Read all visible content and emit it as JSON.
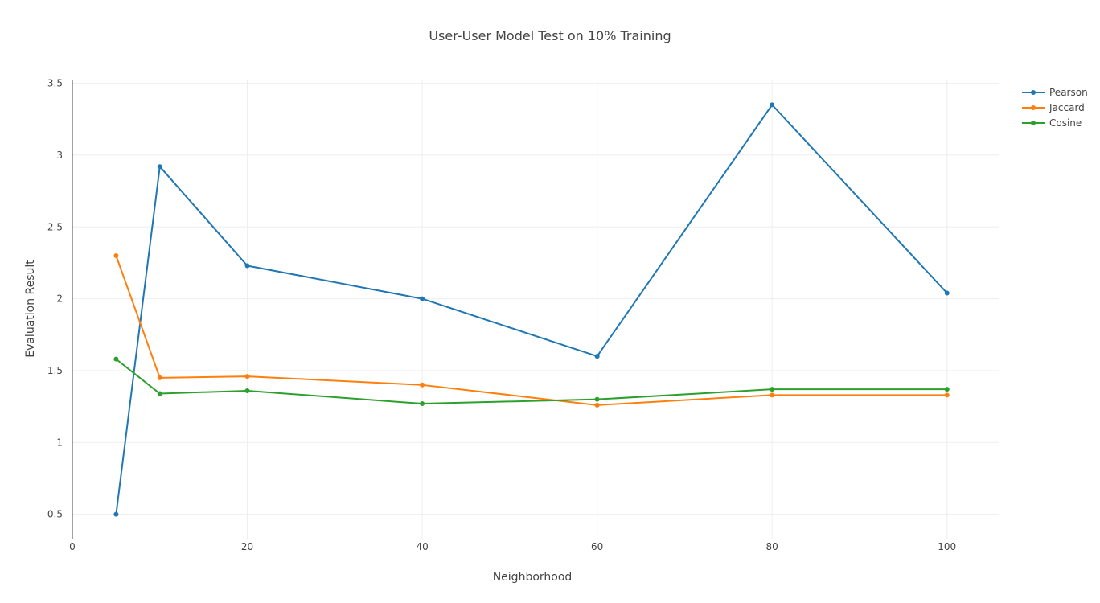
{
  "chart_data": {
    "type": "line",
    "title": "User-User Model Test on 10% Training",
    "xlabel": "Neighborhood",
    "ylabel": "Evaluation Result",
    "xlim": [
      0,
      106
    ],
    "ylim": [
      0.33,
      3.52
    ],
    "x_ticks": [
      0,
      20,
      40,
      60,
      80,
      100
    ],
    "y_ticks": [
      0.5,
      1,
      1.5,
      2,
      2.5,
      3,
      3.5
    ],
    "grid": true,
    "legend_position": "top-right",
    "x": [
      5,
      10,
      20,
      40,
      60,
      80,
      100
    ],
    "series": [
      {
        "name": "Pearson",
        "color": "#1f77b4",
        "values": [
          0.5,
          2.92,
          2.23,
          2.0,
          1.6,
          3.35,
          2.04
        ]
      },
      {
        "name": "Jaccard",
        "color": "#ff7f0e",
        "values": [
          2.3,
          1.45,
          1.46,
          1.4,
          1.26,
          1.33,
          1.33
        ]
      },
      {
        "name": "Cosine",
        "color": "#2ca02c",
        "values": [
          1.58,
          1.34,
          1.36,
          1.27,
          1.3,
          1.37,
          1.37
        ]
      }
    ]
  }
}
